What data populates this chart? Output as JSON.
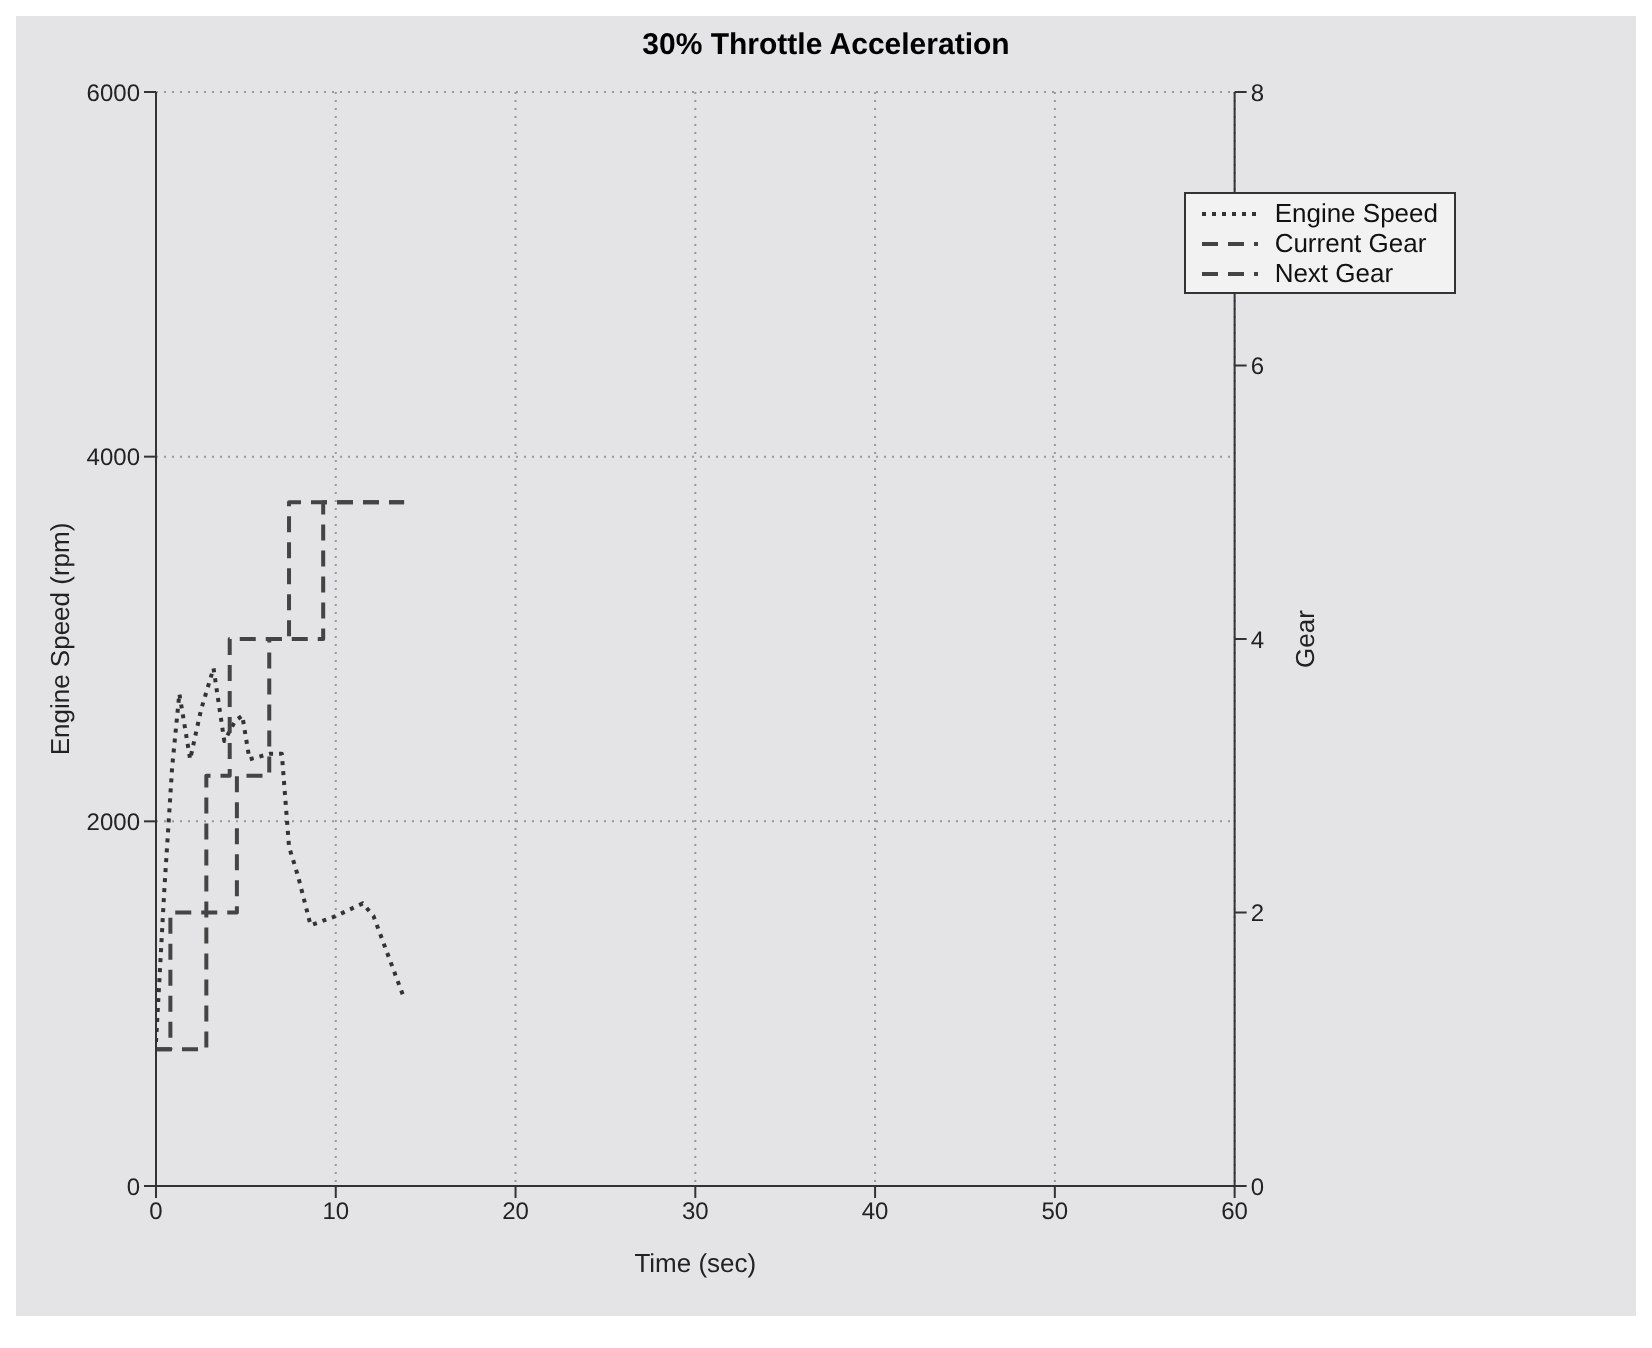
{
  "chart_data": {
    "type": "line",
    "title": "30% Throttle Acceleration",
    "xlabel": "Time (sec)",
    "ylabel": "Engine Speed (rpm)",
    "y2label": "Gear",
    "xlim": [
      0,
      60
    ],
    "xticks": [
      0,
      10,
      20,
      30,
      40,
      50,
      60
    ],
    "ylim": [
      0,
      6000
    ],
    "yticks": [
      0,
      2000,
      4000,
      6000
    ],
    "y2lim": [
      0,
      8
    ],
    "y2ticks": [
      0,
      2,
      4,
      6,
      8
    ],
    "grid": true,
    "legend": "top right",
    "marker": "none",
    "series": [
      {
        "name": "Engine Speed",
        "color": "#333333",
        "line_style": "dotted",
        "x": [
          0,
          0.46,
          0.9,
          1.3,
          1.9,
          2.5,
          3.2,
          3.8,
          4.4,
          4.8,
          5.2,
          6.3,
          7.0,
          7.4,
          7.9,
          8.6,
          10.0,
          11.5,
          12.1,
          13.8
        ],
        "values": [
          790,
          1620,
          2300,
          2700,
          2340,
          2610,
          2840,
          2440,
          2550,
          2580,
          2340,
          2370,
          2370,
          1860,
          1700,
          1430,
          1480,
          1550,
          1480,
          1030
        ]
      },
      {
        "name": "Current Gear",
        "type": "step",
        "axis": "y2",
        "color": "#444444",
        "line_style": "dashed",
        "x": [
          0,
          2.8,
          4.5,
          6.3,
          9.3,
          13.8
        ],
        "values": [
          1,
          2,
          3,
          4,
          5,
          5
        ]
      },
      {
        "name": "Next Gear",
        "type": "step",
        "axis": "y2",
        "color": "#444444",
        "line_style": "dashed",
        "x": [
          0,
          0.8,
          2.8,
          4.1,
          7.4,
          13.8
        ],
        "values": [
          1,
          2,
          3,
          4,
          5,
          5
        ]
      }
    ]
  }
}
